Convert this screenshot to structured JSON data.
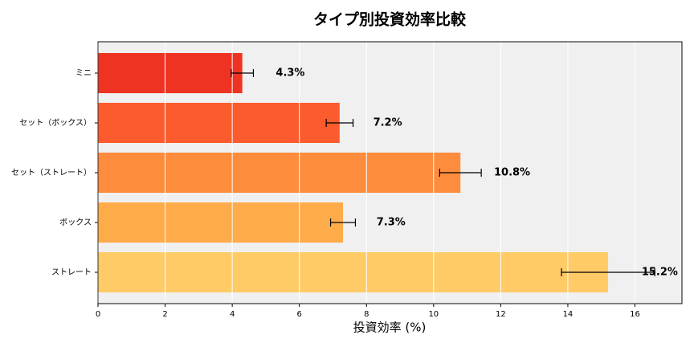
{
  "chart_data": {
    "type": "barh",
    "title": "タイプ別投資効率比較",
    "xlabel": "投資効率 (%)",
    "categories": [
      "ミニ",
      "セット（ボックス）",
      "セット（ストレート）",
      "ボックス",
      "ストレート"
    ],
    "values": [
      4.3,
      7.2,
      10.8,
      7.3,
      15.2
    ],
    "errors": [
      0.33,
      0.4,
      0.62,
      0.37,
      1.39
    ],
    "value_labels": [
      "4.3%",
      "7.2%",
      "10.8%",
      "7.3%",
      "15.2%"
    ],
    "colors": [
      "#ef3323",
      "#fc5b2d",
      "#fd8c3c",
      "#feab4a",
      "#fecb67"
    ],
    "xlim": [
      0,
      17.4
    ],
    "xticks": [
      0,
      2,
      4,
      6,
      8,
      10,
      12,
      14,
      16
    ],
    "grid": true
  }
}
